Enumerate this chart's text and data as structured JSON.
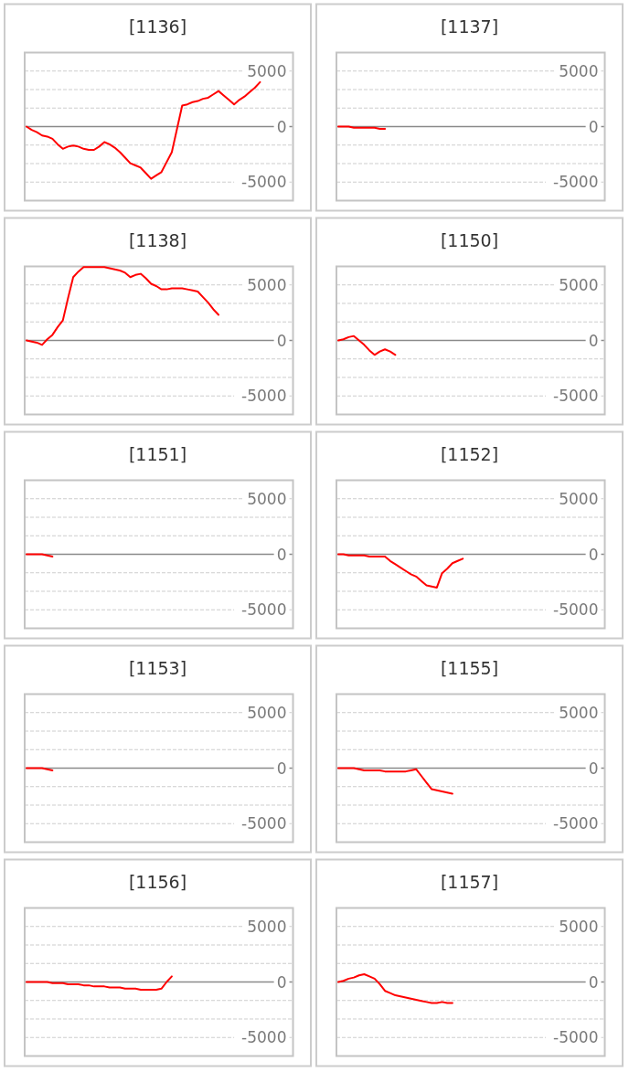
{
  "chart_data": [
    {
      "type": "line",
      "title": "[1136]",
      "categories": [
        null,
        null,
        null,
        null,
        null,
        null,
        null,
        null,
        null,
        null,
        null,
        null,
        null,
        null,
        null,
        null,
        null,
        null,
        null,
        null,
        null,
        null,
        null,
        null,
        null,
        null,
        null,
        null,
        null,
        null,
        null,
        null,
        null,
        null,
        null,
        null,
        null,
        null,
        null,
        null,
        null,
        null,
        null,
        null,
        null,
        null,
        null,
        null,
        null,
        null,
        null,
        null
      ],
      "series": [
        {
          "color": "#ff0000",
          "values": [
            0,
            -300,
            -500,
            -800,
            -900,
            -1100,
            -1600,
            -2000,
            -1800,
            -1700,
            -1800,
            -2000,
            -2100,
            -2100,
            -1800,
            -1400,
            -1600,
            -1900,
            -2300,
            -2800,
            -3300,
            -3500,
            -3700,
            -4200,
            -4700,
            -4400,
            -4100,
            -3200,
            -2300,
            -200,
            1900,
            2000,
            2200,
            2300,
            2500,
            2600,
            2900,
            3200,
            2800,
            2400,
            2000,
            2400,
            2700,
            3100,
            3500,
            4000,
            null,
            null,
            null,
            null,
            null,
            null
          ]
        }
      ],
      "ylim": [
        -6667,
        6667
      ],
      "yticks": [
        -5000,
        {
          "value": -3333,
          "label": null
        },
        {
          "value": -1667,
          "label": null
        },
        0,
        {
          "value": 1667,
          "label": null
        },
        {
          "value": 3333,
          "label": null
        },
        5000
      ],
      "grid": "y"
    },
    {
      "type": "line",
      "title": "[1137]",
      "categories": [
        null,
        null,
        null,
        null,
        null,
        null,
        null,
        null,
        null,
        null,
        null,
        null,
        null,
        null,
        null,
        null,
        null,
        null,
        null,
        null,
        null,
        null,
        null,
        null,
        null,
        null,
        null,
        null,
        null,
        null,
        null,
        null,
        null,
        null,
        null,
        null,
        null,
        null,
        null,
        null,
        null,
        null,
        null,
        null,
        null,
        null,
        null,
        null,
        null,
        null,
        null,
        null
      ],
      "series": [
        {
          "color": "#ff0000",
          "values": [
            0,
            0,
            0,
            -100,
            -100,
            -100,
            -100,
            -100,
            -200,
            -200,
            null,
            null,
            null,
            null,
            null,
            null,
            null,
            null,
            null,
            null,
            null,
            null,
            null,
            null,
            null,
            null,
            null,
            null,
            null,
            null,
            null,
            null,
            null,
            null,
            null,
            null,
            null,
            null,
            null,
            null,
            null,
            null,
            null,
            null,
            null,
            null,
            null,
            null,
            null,
            null,
            null,
            null
          ]
        }
      ],
      "ylim": [
        -6667,
        6667
      ],
      "yticks": [
        -5000,
        {
          "value": -3333,
          "label": null
        },
        {
          "value": -1667,
          "label": null
        },
        0,
        {
          "value": 1667,
          "label": null
        },
        {
          "value": 3333,
          "label": null
        },
        5000
      ],
      "grid": "y"
    },
    {
      "type": "line",
      "title": "[1138]",
      "categories": [
        null,
        null,
        null,
        null,
        null,
        null,
        null,
        null,
        null,
        null,
        null,
        null,
        null,
        null,
        null,
        null,
        null,
        null,
        null,
        null,
        null,
        null,
        null,
        null,
        null,
        null,
        null,
        null,
        null,
        null,
        null,
        null,
        null,
        null,
        null,
        null,
        null,
        null,
        null,
        null,
        null,
        null,
        null,
        null,
        null,
        null,
        null,
        null,
        null,
        null,
        null,
        null
      ],
      "series": [
        {
          "color": "#ff0000",
          "values": [
            0,
            -100,
            -200,
            -400,
            100,
            500,
            1200,
            1800,
            3800,
            5700,
            6200,
            6600,
            6600,
            6600,
            6600,
            6600,
            6500,
            6400,
            6300,
            6100,
            5700,
            5900,
            6000,
            5600,
            5100,
            4900,
            4600,
            4600,
            4700,
            4700,
            4700,
            4600,
            4500,
            4400,
            3900,
            3400,
            2800,
            2300,
            null,
            null,
            null,
            null,
            null,
            null,
            null,
            null,
            null,
            null,
            null,
            null,
            null,
            null
          ]
        }
      ],
      "ylim": [
        -6667,
        6667
      ],
      "yticks": [
        -5000,
        {
          "value": -3333,
          "label": null
        },
        {
          "value": -1667,
          "label": null
        },
        0,
        {
          "value": 1667,
          "label": null
        },
        {
          "value": 3333,
          "label": null
        },
        5000
      ],
      "grid": "y"
    },
    {
      "type": "line",
      "title": "[1150]",
      "categories": [
        null,
        null,
        null,
        null,
        null,
        null,
        null,
        null,
        null,
        null,
        null,
        null,
        null,
        null,
        null,
        null,
        null,
        null,
        null,
        null,
        null,
        null,
        null,
        null,
        null,
        null,
        null,
        null,
        null,
        null,
        null,
        null,
        null,
        null,
        null,
        null,
        null,
        null,
        null,
        null,
        null,
        null,
        null,
        null,
        null,
        null,
        null,
        null,
        null,
        null,
        null,
        null
      ],
      "series": [
        {
          "color": "#ff0000",
          "values": [
            0,
            100,
            300,
            400,
            0,
            -400,
            -900,
            -1300,
            -1000,
            -800,
            -1000,
            -1300,
            null,
            null,
            null,
            null,
            null,
            null,
            null,
            null,
            null,
            null,
            null,
            null,
            null,
            null,
            null,
            null,
            null,
            null,
            null,
            null,
            null,
            null,
            null,
            null,
            null,
            null,
            null,
            null,
            null,
            null,
            null,
            null,
            null,
            null,
            null,
            null,
            null,
            null,
            null,
            null
          ]
        }
      ],
      "ylim": [
        -6667,
        6667
      ],
      "yticks": [
        -5000,
        {
          "value": -3333,
          "label": null
        },
        {
          "value": -1667,
          "label": null
        },
        0,
        {
          "value": 1667,
          "label": null
        },
        {
          "value": 3333,
          "label": null
        },
        5000
      ],
      "grid": "y"
    },
    {
      "type": "line",
      "title": "[1151]",
      "categories": [
        null,
        null,
        null,
        null,
        null,
        null,
        null,
        null,
        null,
        null,
        null,
        null,
        null,
        null,
        null,
        null,
        null,
        null,
        null,
        null,
        null,
        null,
        null,
        null,
        null,
        null,
        null,
        null,
        null,
        null,
        null,
        null,
        null,
        null,
        null,
        null,
        null,
        null,
        null,
        null,
        null,
        null,
        null,
        null,
        null,
        null,
        null,
        null,
        null,
        null,
        null,
        null
      ],
      "series": [
        {
          "color": "#ff0000",
          "values": [
            0,
            0,
            0,
            0,
            -100,
            -200,
            null,
            null,
            null,
            null,
            null,
            null,
            null,
            null,
            null,
            null,
            null,
            null,
            null,
            null,
            null,
            null,
            null,
            null,
            null,
            null,
            null,
            null,
            null,
            null,
            null,
            null,
            null,
            null,
            null,
            null,
            null,
            null,
            null,
            null,
            null,
            null,
            null,
            null,
            null,
            null,
            null,
            null,
            null,
            null,
            null,
            null
          ]
        }
      ],
      "ylim": [
        -6667,
        6667
      ],
      "yticks": [
        -5000,
        {
          "value": -3333,
          "label": null
        },
        {
          "value": -1667,
          "label": null
        },
        0,
        {
          "value": 1667,
          "label": null
        },
        {
          "value": 3333,
          "label": null
        },
        5000
      ],
      "grid": "y"
    },
    {
      "type": "line",
      "title": "[1152]",
      "categories": [
        null,
        null,
        null,
        null,
        null,
        null,
        null,
        null,
        null,
        null,
        null,
        null,
        null,
        null,
        null,
        null,
        null,
        null,
        null,
        null,
        null,
        null,
        null,
        null,
        null,
        null,
        null,
        null,
        null,
        null,
        null,
        null,
        null,
        null,
        null,
        null,
        null,
        null,
        null,
        null,
        null,
        null,
        null,
        null,
        null,
        null,
        null,
        null,
        null,
        null,
        null,
        null
      ],
      "series": [
        {
          "color": "#ff0000",
          "values": [
            0,
            0,
            -100,
            -100,
            -100,
            -100,
            -200,
            -200,
            -200,
            -200,
            -600,
            -900,
            -1200,
            -1500,
            -1800,
            -2000,
            -2400,
            -2800,
            -2900,
            -3000,
            -1700,
            -1300,
            -800,
            -600,
            -400,
            null,
            null,
            null,
            null,
            null,
            null,
            null,
            null,
            null,
            null,
            null,
            null,
            null,
            null,
            null,
            null,
            null,
            null,
            null,
            null,
            null,
            null,
            null,
            null,
            null,
            null,
            null
          ]
        }
      ],
      "ylim": [
        -6667,
        6667
      ],
      "yticks": [
        -5000,
        {
          "value": -3333,
          "label": null
        },
        {
          "value": -1667,
          "label": null
        },
        0,
        {
          "value": 1667,
          "label": null
        },
        {
          "value": 3333,
          "label": null
        },
        5000
      ],
      "grid": "y"
    },
    {
      "type": "line",
      "title": "[1153]",
      "categories": [
        null,
        null,
        null,
        null,
        null,
        null,
        null,
        null,
        null,
        null,
        null,
        null,
        null,
        null,
        null,
        null,
        null,
        null,
        null,
        null,
        null,
        null,
        null,
        null,
        null,
        null,
        null,
        null,
        null,
        null,
        null,
        null,
        null,
        null,
        null,
        null,
        null,
        null,
        null,
        null,
        null,
        null,
        null,
        null,
        null,
        null,
        null,
        null,
        null,
        null,
        null,
        null
      ],
      "series": [
        {
          "color": "#ff0000",
          "values": [
            0,
            0,
            0,
            0,
            -100,
            -200,
            null,
            null,
            null,
            null,
            null,
            null,
            null,
            null,
            null,
            null,
            null,
            null,
            null,
            null,
            null,
            null,
            null,
            null,
            null,
            null,
            null,
            null,
            null,
            null,
            null,
            null,
            null,
            null,
            null,
            null,
            null,
            null,
            null,
            null,
            null,
            null,
            null,
            null,
            null,
            null,
            null,
            null,
            null,
            null,
            null,
            null
          ]
        }
      ],
      "ylim": [
        -6667,
        6667
      ],
      "yticks": [
        -5000,
        {
          "value": -3333,
          "label": null
        },
        {
          "value": -1667,
          "label": null
        },
        0,
        {
          "value": 1667,
          "label": null
        },
        {
          "value": 3333,
          "label": null
        },
        5000
      ],
      "grid": "y"
    },
    {
      "type": "line",
      "title": "[1155]",
      "categories": [
        null,
        null,
        null,
        null,
        null,
        null,
        null,
        null,
        null,
        null,
        null,
        null,
        null,
        null,
        null,
        null,
        null,
        null,
        null,
        null,
        null,
        null,
        null,
        null,
        null,
        null,
        null,
        null,
        null,
        null,
        null,
        null,
        null,
        null,
        null,
        null,
        null,
        null,
        null,
        null,
        null,
        null,
        null,
        null,
        null,
        null,
        null,
        null,
        null,
        null,
        null,
        null
      ],
      "series": [
        {
          "color": "#ff0000",
          "values": [
            0,
            0,
            0,
            0,
            -100,
            -200,
            -200,
            -200,
            -200,
            -300,
            -300,
            -300,
            -300,
            -300,
            -200,
            -100,
            -700,
            -1300,
            -1900,
            -2000,
            -2100,
            -2200,
            -2300,
            null,
            null,
            null,
            null,
            null,
            null,
            null,
            null,
            null,
            null,
            null,
            null,
            null,
            null,
            null,
            null,
            null,
            null,
            null,
            null,
            null,
            null,
            null,
            null,
            null,
            null,
            null,
            null,
            null
          ]
        }
      ],
      "ylim": [
        -6667,
        6667
      ],
      "yticks": [
        -5000,
        {
          "value": -3333,
          "label": null
        },
        {
          "value": -1667,
          "label": null
        },
        0,
        {
          "value": 1667,
          "label": null
        },
        {
          "value": 3333,
          "label": null
        },
        5000
      ],
      "grid": "y"
    },
    {
      "type": "line",
      "title": "[1156]",
      "categories": [
        null,
        null,
        null,
        null,
        null,
        null,
        null,
        null,
        null,
        null,
        null,
        null,
        null,
        null,
        null,
        null,
        null,
        null,
        null,
        null,
        null,
        null,
        null,
        null,
        null,
        null,
        null,
        null,
        null,
        null,
        null,
        null,
        null,
        null,
        null,
        null,
        null,
        null,
        null,
        null,
        null,
        null,
        null,
        null,
        null,
        null,
        null,
        null,
        null,
        null,
        null,
        null
      ],
      "series": [
        {
          "color": "#ff0000",
          "values": [
            0,
            0,
            0,
            0,
            0,
            -100,
            -100,
            -100,
            -200,
            -200,
            -200,
            -300,
            -300,
            -400,
            -400,
            -400,
            -500,
            -500,
            -500,
            -600,
            -600,
            -600,
            -700,
            -700,
            -700,
            -700,
            -600,
            0,
            500,
            null,
            null,
            null,
            null,
            null,
            null,
            null,
            null,
            null,
            null,
            null,
            null,
            null,
            null,
            null,
            null,
            null,
            null,
            null,
            null,
            null,
            null,
            null
          ]
        }
      ],
      "ylim": [
        -6667,
        6667
      ],
      "yticks": [
        -5000,
        {
          "value": -3333,
          "label": null
        },
        {
          "value": -1667,
          "label": null
        },
        0,
        {
          "value": 1667,
          "label": null
        },
        {
          "value": 3333,
          "label": null
        },
        5000
      ],
      "grid": "y"
    },
    {
      "type": "line",
      "title": "[1157]",
      "categories": [
        null,
        null,
        null,
        null,
        null,
        null,
        null,
        null,
        null,
        null,
        null,
        null,
        null,
        null,
        null,
        null,
        null,
        null,
        null,
        null,
        null,
        null,
        null,
        null,
        null,
        null,
        null,
        null,
        null,
        null,
        null,
        null,
        null,
        null,
        null,
        null,
        null,
        null,
        null,
        null,
        null,
        null,
        null,
        null,
        null,
        null,
        null,
        null,
        null,
        null,
        null,
        null
      ],
      "series": [
        {
          "color": "#ff0000",
          "values": [
            0,
            100,
            300,
            400,
            600,
            700,
            500,
            300,
            -200,
            -800,
            -1000,
            -1200,
            -1300,
            -1400,
            -1500,
            -1600,
            -1700,
            -1800,
            -1900,
            -1900,
            -1800,
            -1900,
            -1900,
            null,
            null,
            null,
            null,
            null,
            null,
            null,
            null,
            null,
            null,
            null,
            null,
            null,
            null,
            null,
            null,
            null,
            null,
            null,
            null,
            null,
            null,
            null,
            null,
            null,
            null,
            null,
            null,
            null
          ]
        }
      ],
      "ylim": [
        -6667,
        6667
      ],
      "yticks": [
        -5000,
        {
          "value": -3333,
          "label": null
        },
        {
          "value": -1667,
          "label": null
        },
        0,
        {
          "value": 1667,
          "label": null
        },
        {
          "value": 3333,
          "label": null
        },
        5000
      ],
      "grid": "y"
    }
  ]
}
